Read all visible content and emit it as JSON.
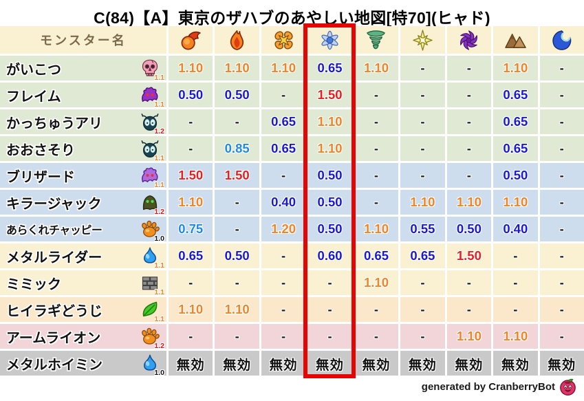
{
  "title": "C(84)【A】東京のザハブのあやしい地図[特70](ヒャド)",
  "table": {
    "name_header": "モンスター名",
    "elements": [
      {
        "id": "fire",
        "icon": "fireball-icon"
      },
      {
        "id": "flame",
        "icon": "flame-icon"
      },
      {
        "id": "explosion",
        "icon": "explosion-icon"
      },
      {
        "id": "ice",
        "icon": "snowflake-icon"
      },
      {
        "id": "wind",
        "icon": "tornado-icon"
      },
      {
        "id": "light",
        "icon": "star-icon"
      },
      {
        "id": "dark",
        "icon": "pinwheel-icon"
      },
      {
        "id": "earth",
        "icon": "mountain-icon"
      },
      {
        "id": "water",
        "icon": "wave-icon"
      }
    ],
    "highlighted_element_index": 3,
    "rows": [
      {
        "name": "がいこつ",
        "icon": "skull-icon",
        "badge": "1.1",
        "group": "green",
        "values": [
          "1.10",
          "1.10",
          "1.10",
          "0.65",
          "1.10",
          "-",
          "-",
          "1.10",
          "-"
        ]
      },
      {
        "name": "フレイム",
        "icon": "flame-ghost-icon",
        "badge": "1.1",
        "group": "green",
        "values": [
          "0.50",
          "0.50",
          "-",
          "1.50",
          "-",
          "-",
          "-",
          "0.65",
          "-"
        ]
      },
      {
        "name": "かっちゅうアリ",
        "icon": "ant-head-icon",
        "badge": "1.2",
        "group": "green",
        "values": [
          "-",
          "-",
          "0.65",
          "1.10",
          "-",
          "-",
          "-",
          "0.65",
          "-"
        ]
      },
      {
        "name": "おおさそり",
        "icon": "ant-head-icon",
        "badge": "1.1",
        "group": "green",
        "values": [
          "-",
          "0.85",
          "0.65",
          "1.10",
          "-",
          "-",
          "-",
          "0.65",
          "-"
        ]
      },
      {
        "name": "ブリザード",
        "icon": "blizzard-ghost-icon",
        "badge": "1.1",
        "group": "blue",
        "values": [
          "1.50",
          "1.50",
          "-",
          "0.50",
          "-",
          "-",
          "-",
          "0.50",
          "-"
        ]
      },
      {
        "name": "キラージャック",
        "icon": "hood-icon",
        "badge": "1.2",
        "group": "blue",
        "values": [
          "1.10",
          "-",
          "0.40",
          "0.50",
          "-",
          "1.10",
          "1.10",
          "1.10",
          "-"
        ]
      },
      {
        "name": "あらくれチャッピー",
        "icon": "paw-icon",
        "badge": "1.0",
        "group": "blue",
        "values": [
          "0.75",
          "-",
          "1.20",
          "0.50",
          "1.10",
          "0.55",
          "0.50",
          "0.40",
          "-"
        ]
      },
      {
        "name": "メタルライダー",
        "icon": "slime-icon",
        "badge": "1.1",
        "group": "cream",
        "values": [
          "0.65",
          "0.50",
          "-",
          "0.60",
          "0.65",
          "0.65",
          "1.50",
          "-",
          "-"
        ]
      },
      {
        "name": "ミミック",
        "icon": "brick-icon",
        "badge": "1.1",
        "group": "cream",
        "values": [
          "-",
          "-",
          "-",
          "-",
          "1.10",
          "-",
          "-",
          "-",
          "-"
        ]
      },
      {
        "name": "ヒイラギどうじ",
        "icon": "leaf-icon",
        "badge": "1.1",
        "group": "peach",
        "values": [
          "1.10",
          "1.10",
          "-",
          "-",
          "-",
          "-",
          "-",
          "-",
          "-"
        ]
      },
      {
        "name": "アームライオン",
        "icon": "paw-icon",
        "badge": "1.2",
        "group": "pink",
        "values": [
          "-",
          "-",
          "-",
          "-",
          "-",
          "-",
          "1.10",
          "1.10",
          "-"
        ]
      },
      {
        "name": "メタルホイミン",
        "icon": "slime-icon",
        "badge": "1.0",
        "group": "gray",
        "values": [
          "無効",
          "無効",
          "無効",
          "無効",
          "無効",
          "無効",
          "無効",
          "無効",
          "無効"
        ]
      }
    ]
  },
  "footer": {
    "credit": "generated by CranberryBot",
    "icon": "cranberry-icon"
  },
  "colors": {
    "highlight_box": "#e60505",
    "value_up": "#f08427",
    "value_severe": "#e62020",
    "value_resist": "#1a1ad2",
    "value_mild_resist": "#1e8ce6",
    "value_neutral": "#1a1a1a",
    "badge_1_0": "#111111",
    "badge_1_1": "#f08427",
    "badge_1_2": "#e61414",
    "row_green": "#dfe9d3",
    "row_blue": "#cedded",
    "row_cream": "#faf0d2",
    "row_peach": "#fbe7c9",
    "row_pink": "#f2d5d9",
    "row_gray": "#c9c9c9",
    "header_bg": "#faf0d2",
    "header_text": "#7a6a4a"
  }
}
